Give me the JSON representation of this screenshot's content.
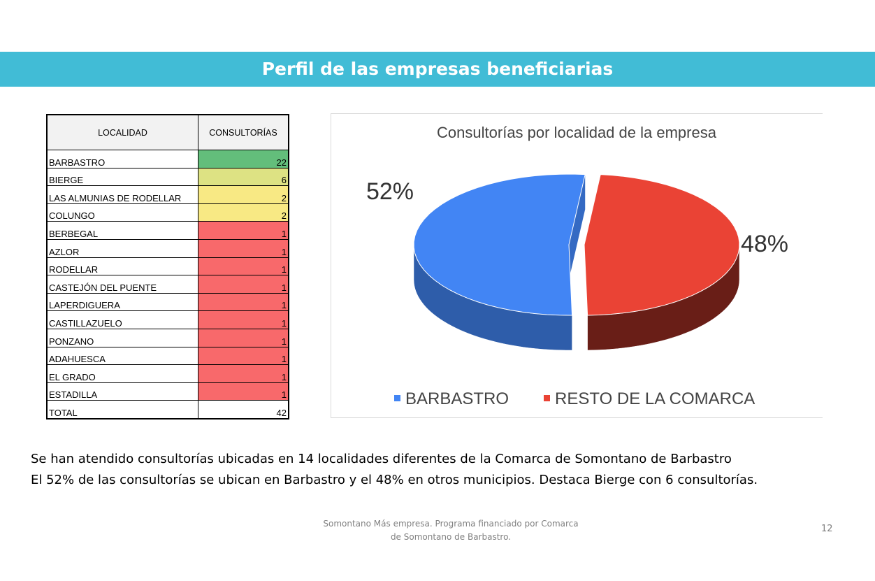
{
  "title": "Perfil de las empresas beneficiarias",
  "table": {
    "headers": [
      "LOCALIDAD",
      "CONSULTORÍAS"
    ],
    "rows": [
      {
        "name": "BARBASTRO",
        "value": "22",
        "color": "#63be7b"
      },
      {
        "name": "BIERGE",
        "value": "6",
        "color": "#dde283"
      },
      {
        "name": "LAS ALMUNIAS DE RODELLAR",
        "value": "2",
        "color": "#f8e984"
      },
      {
        "name": "COLUNGO",
        "value": "2",
        "color": "#f8e984"
      },
      {
        "name": "BERBEGAL",
        "value": "1",
        "color": "#f8696b"
      },
      {
        "name": "AZLOR",
        "value": "1",
        "color": "#f8696b"
      },
      {
        "name": "RODELLAR",
        "value": "1",
        "color": "#f8696b"
      },
      {
        "name": "CASTEJÓN DEL PUENTE",
        "value": "1",
        "color": "#f8696b"
      },
      {
        "name": "LAPERDIGUERA",
        "value": "1",
        "color": "#f8696b"
      },
      {
        "name": "CASTILLAZUELO",
        "value": "1",
        "color": "#f8696b"
      },
      {
        "name": "PONZANO",
        "value": "1",
        "color": "#f8696b"
      },
      {
        "name": "ADAHUESCA",
        "value": "1",
        "color": "#f8696b"
      },
      {
        "name": "EL GRADO",
        "value": "1",
        "color": "#f8696b"
      },
      {
        "name": "ESTADILLA",
        "value": "1",
        "color": "#f8696b"
      }
    ],
    "total": {
      "name": "TOTAL",
      "value": "42"
    }
  },
  "chart_data": {
    "type": "pie",
    "title": "Consultorías por localidad de la empresa",
    "three_d": true,
    "legend_position": "bottom",
    "slices": [
      {
        "label": "BARBASTRO",
        "value": 52,
        "display": "52%",
        "color": "#4285f4"
      },
      {
        "label": "RESTO DE LA COMARCA",
        "value": 48,
        "display": "48%",
        "color": "#ea4335"
      }
    ]
  },
  "text": {
    "line1": "Se han atendido consultorías ubicadas en 14 localidades diferentes de la Comarca de Somontano de Barbastro",
    "line2": "El 52% de las consultorías se ubican en Barbastro y el 48% en otros municipios. Destaca Bierge con 6 consultorías."
  },
  "footer": {
    "line1": "Somontano Más empresa. Programa financiado por Comarca",
    "line2": "de Somontano de Barbastro.",
    "page": "12"
  }
}
